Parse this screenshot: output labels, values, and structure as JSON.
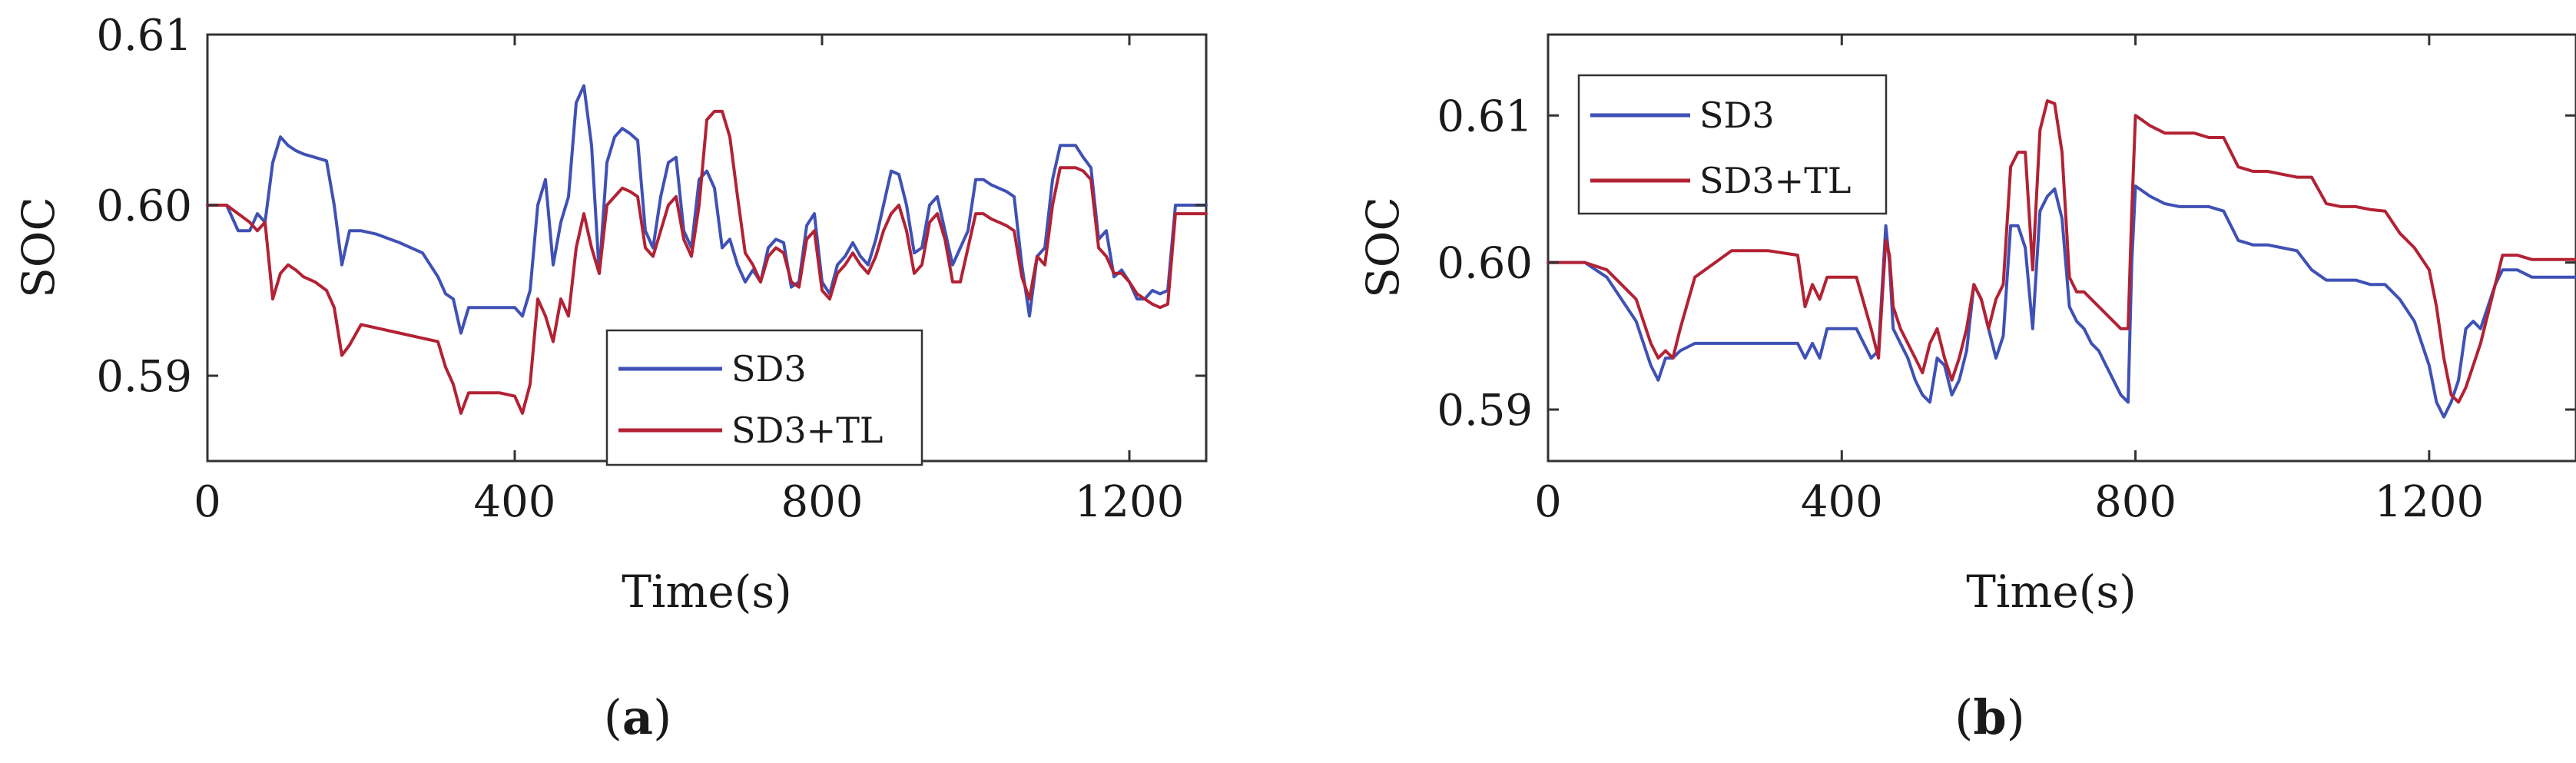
{
  "chart_data": [
    {
      "type": "line",
      "panel_label": "a",
      "title": "",
      "xlabel": "Time(s)",
      "ylabel": "SOC",
      "xlim": [
        0,
        1300
      ],
      "ylim": [
        0.585,
        0.61
      ],
      "xticks": [
        0,
        400,
        800,
        1200
      ],
      "yticks": [
        0.59,
        0.6,
        0.61
      ],
      "xtick_labels": [
        "0",
        "400",
        "800",
        "1200"
      ],
      "ytick_labels": [
        "0.59",
        "0.60",
        "0.61"
      ],
      "legend_position": "lower-right",
      "x": [
        0,
        25,
        40,
        55,
        65,
        75,
        85,
        95,
        105,
        115,
        125,
        140,
        155,
        165,
        175,
        185,
        200,
        220,
        250,
        280,
        300,
        310,
        320,
        330,
        340,
        360,
        380,
        400,
        410,
        420,
        430,
        440,
        450,
        460,
        470,
        480,
        490,
        500,
        510,
        520,
        530,
        540,
        550,
        560,
        570,
        580,
        590,
        600,
        610,
        620,
        630,
        640,
        650,
        660,
        670,
        680,
        690,
        700,
        710,
        720,
        730,
        740,
        750,
        760,
        770,
        780,
        790,
        800,
        810,
        820,
        830,
        840,
        850,
        860,
        870,
        880,
        890,
        900,
        910,
        920,
        930,
        940,
        950,
        960,
        970,
        980,
        990,
        1000,
        1010,
        1020,
        1030,
        1040,
        1050,
        1060,
        1070,
        1080,
        1090,
        1100,
        1110,
        1120,
        1130,
        1140,
        1150,
        1160,
        1170,
        1180,
        1190,
        1200,
        1210,
        1220,
        1230,
        1240,
        1250,
        1260,
        1270,
        1280,
        1290,
        1300
      ],
      "series": [
        {
          "name": "SD3",
          "color": "#3f51b5",
          "values": [
            0.6,
            0.6,
            0.5985,
            0.5985,
            0.5995,
            0.599,
            0.6025,
            0.604,
            0.6035,
            0.6032,
            0.603,
            0.6028,
            0.6026,
            0.6,
            0.5965,
            0.5985,
            0.5985,
            0.5983,
            0.5978,
            0.5972,
            0.5958,
            0.5948,
            0.5945,
            0.5925,
            0.594,
            0.594,
            0.594,
            0.594,
            0.5935,
            0.595,
            0.6,
            0.6015,
            0.5965,
            0.599,
            0.6005,
            0.606,
            0.607,
            0.6035,
            0.596,
            0.6025,
            0.604,
            0.6045,
            0.6042,
            0.6038,
            0.5985,
            0.5975,
            0.6005,
            0.6025,
            0.6028,
            0.5985,
            0.5975,
            0.6015,
            0.602,
            0.601,
            0.5975,
            0.598,
            0.5965,
            0.5955,
            0.5962,
            0.5955,
            0.5975,
            0.598,
            0.5978,
            0.5952,
            0.5955,
            0.5988,
            0.5995,
            0.5955,
            0.5948,
            0.5965,
            0.597,
            0.5978,
            0.597,
            0.5965,
            0.598,
            0.6,
            0.602,
            0.6018,
            0.6,
            0.5972,
            0.5975,
            0.6,
            0.6005,
            0.5985,
            0.5965,
            0.5975,
            0.5985,
            0.6015,
            0.6015,
            0.6012,
            0.601,
            0.6008,
            0.6005,
            0.5965,
            0.5935,
            0.597,
            0.5975,
            0.6015,
            0.6035,
            0.6035,
            0.6035,
            0.6028,
            0.6022,
            0.598,
            0.5985,
            0.5958,
            0.5962,
            0.5955,
            0.5945,
            0.5945,
            0.595,
            0.5948,
            0.595,
            0.6,
            0.6,
            0.6,
            0.6,
            0.6
          ]
        },
        {
          "name": "SD3+TL",
          "color": "#b22234",
          "values": [
            0.6,
            0.6,
            0.5995,
            0.599,
            0.5985,
            0.599,
            0.5945,
            0.596,
            0.5965,
            0.5962,
            0.5958,
            0.5955,
            0.595,
            0.594,
            0.5912,
            0.5918,
            0.593,
            0.5928,
            0.5925,
            0.5922,
            0.592,
            0.5905,
            0.5895,
            0.5878,
            0.589,
            0.589,
            0.589,
            0.5888,
            0.5878,
            0.5895,
            0.5945,
            0.5935,
            0.592,
            0.5945,
            0.5935,
            0.5975,
            0.5995,
            0.5975,
            0.596,
            0.6,
            0.6005,
            0.601,
            0.6008,
            0.6005,
            0.5975,
            0.597,
            0.5985,
            0.6,
            0.6005,
            0.598,
            0.597,
            0.6,
            0.605,
            0.6055,
            0.6055,
            0.604,
            0.6005,
            0.5972,
            0.5965,
            0.5955,
            0.597,
            0.5975,
            0.5972,
            0.5955,
            0.5952,
            0.598,
            0.5985,
            0.595,
            0.5945,
            0.596,
            0.5965,
            0.5972,
            0.5965,
            0.596,
            0.597,
            0.5985,
            0.5995,
            0.6,
            0.5985,
            0.596,
            0.5965,
            0.599,
            0.5995,
            0.598,
            0.5955,
            0.5955,
            0.5975,
            0.5995,
            0.5995,
            0.5992,
            0.599,
            0.5988,
            0.5985,
            0.5958,
            0.5945,
            0.597,
            0.5965,
            0.6,
            0.6022,
            0.6022,
            0.6022,
            0.602,
            0.6015,
            0.5975,
            0.597,
            0.596,
            0.596,
            0.5955,
            0.5948,
            0.5945,
            0.5942,
            0.594,
            0.5942,
            0.5995,
            0.5995,
            0.5995,
            0.5995,
            0.5995
          ]
        }
      ]
    },
    {
      "type": "line",
      "panel_label": "b",
      "title": "",
      "xlabel": "Time(s)",
      "ylabel": "SOC",
      "xlim": [
        0,
        1400
      ],
      "ylim": [
        0.5865,
        0.6155
      ],
      "xticks": [
        0,
        400,
        800,
        1200
      ],
      "yticks": [
        0.59,
        0.6,
        0.61
      ],
      "xtick_labels": [
        "0",
        "400",
        "800",
        "1200"
      ],
      "ytick_labels": [
        "0.59",
        "0.60",
        "0.61"
      ],
      "legend_position": "top-left",
      "x": [
        0,
        50,
        80,
        100,
        120,
        130,
        140,
        150,
        160,
        170,
        180,
        200,
        250,
        300,
        340,
        350,
        360,
        370,
        380,
        400,
        420,
        440,
        450,
        460,
        465,
        470,
        480,
        490,
        500,
        510,
        520,
        530,
        540,
        550,
        560,
        570,
        580,
        590,
        600,
        610,
        620,
        630,
        640,
        650,
        660,
        670,
        680,
        690,
        700,
        710,
        720,
        730,
        740,
        750,
        760,
        770,
        780,
        790,
        795,
        800,
        820,
        840,
        860,
        880,
        900,
        920,
        940,
        960,
        980,
        1000,
        1020,
        1040,
        1060,
        1080,
        1100,
        1120,
        1140,
        1160,
        1180,
        1200,
        1210,
        1220,
        1230,
        1240,
        1250,
        1260,
        1270,
        1280,
        1290,
        1300,
        1320,
        1340,
        1360,
        1380,
        1400
      ],
      "series": [
        {
          "name": "SD3",
          "color": "#3f51b5",
          "values": [
            0.6,
            0.6,
            0.599,
            0.5975,
            0.596,
            0.5945,
            0.593,
            0.592,
            0.5935,
            0.5935,
            0.594,
            0.5945,
            0.5945,
            0.5945,
            0.5945,
            0.5935,
            0.5945,
            0.5935,
            0.5955,
            0.5955,
            0.5955,
            0.5935,
            0.594,
            0.6025,
            0.6,
            0.5955,
            0.5945,
            0.5935,
            0.592,
            0.591,
            0.5905,
            0.5935,
            0.593,
            0.591,
            0.592,
            0.594,
            0.5985,
            0.5975,
            0.5955,
            0.5935,
            0.595,
            0.6025,
            0.6025,
            0.601,
            0.5955,
            0.6035,
            0.6045,
            0.605,
            0.603,
            0.597,
            0.596,
            0.5955,
            0.5945,
            0.594,
            0.593,
            0.592,
            0.591,
            0.5905,
            0.6,
            0.6052,
            0.6045,
            0.604,
            0.6038,
            0.6038,
            0.6038,
            0.6035,
            0.6015,
            0.6012,
            0.6012,
            0.601,
            0.6008,
            0.5995,
            0.5988,
            0.5988,
            0.5988,
            0.5985,
            0.5985,
            0.5975,
            0.596,
            0.593,
            0.5905,
            0.5895,
            0.5905,
            0.592,
            0.5955,
            0.596,
            0.5955,
            0.597,
            0.5985,
            0.5995,
            0.5995,
            0.599,
            0.599,
            0.599,
            0.599
          ]
        },
        {
          "name": "SD3+TL",
          "color": "#b22234",
          "values": [
            0.6,
            0.6,
            0.5995,
            0.5985,
            0.5975,
            0.596,
            0.5945,
            0.5935,
            0.594,
            0.5935,
            0.5955,
            0.599,
            0.6008,
            0.6008,
            0.6005,
            0.597,
            0.5985,
            0.5975,
            0.599,
            0.599,
            0.599,
            0.5955,
            0.5935,
            0.6015,
            0.6005,
            0.597,
            0.5955,
            0.5945,
            0.5935,
            0.5925,
            0.5945,
            0.5955,
            0.5935,
            0.592,
            0.5935,
            0.5955,
            0.5985,
            0.5975,
            0.5955,
            0.5975,
            0.5985,
            0.6065,
            0.6075,
            0.6075,
            0.5995,
            0.609,
            0.611,
            0.6108,
            0.6075,
            0.599,
            0.598,
            0.598,
            0.5975,
            0.597,
            0.5965,
            0.596,
            0.5955,
            0.5955,
            0.6035,
            0.61,
            0.6093,
            0.6088,
            0.6088,
            0.6088,
            0.6085,
            0.6085,
            0.6065,
            0.6062,
            0.6062,
            0.606,
            0.6058,
            0.6058,
            0.604,
            0.6038,
            0.6038,
            0.6036,
            0.6035,
            0.602,
            0.601,
            0.5995,
            0.597,
            0.5935,
            0.591,
            0.5905,
            0.5915,
            0.593,
            0.5945,
            0.5965,
            0.5985,
            0.6005,
            0.6005,
            0.6002,
            0.6002,
            0.6002,
            0.6002
          ]
        }
      ]
    }
  ],
  "captions": [
    {
      "open": "(",
      "label": "a",
      "close": ")"
    },
    {
      "open": "(",
      "label": "b",
      "close": ")"
    }
  ]
}
